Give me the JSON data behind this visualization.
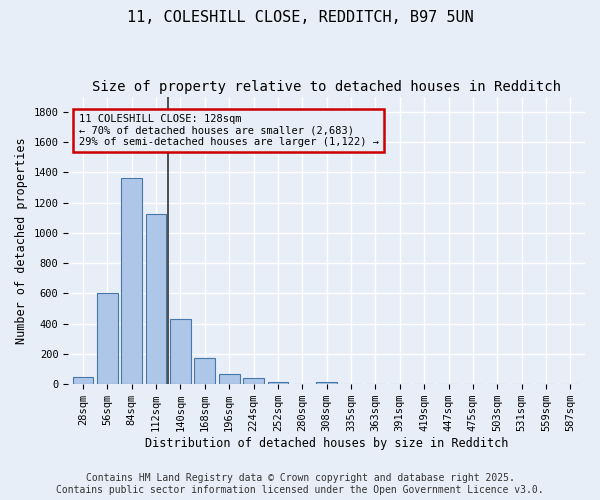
{
  "title_line1": "11, COLESHILL CLOSE, REDDITCH, B97 5UN",
  "title_line2": "Size of property relative to detached houses in Redditch",
  "xlabel": "Distribution of detached houses by size in Redditch",
  "ylabel": "Number of detached properties",
  "categories": [
    "28sqm",
    "56sqm",
    "84sqm",
    "112sqm",
    "140sqm",
    "168sqm",
    "196sqm",
    "224sqm",
    "252sqm",
    "280sqm",
    "308sqm",
    "335sqm",
    "363sqm",
    "391sqm",
    "419sqm",
    "447sqm",
    "475sqm",
    "503sqm",
    "531sqm",
    "559sqm",
    "587sqm"
  ],
  "values": [
    50,
    605,
    1365,
    1125,
    430,
    170,
    65,
    40,
    15,
    0,
    15,
    0,
    0,
    0,
    0,
    0,
    0,
    0,
    0,
    0,
    0
  ],
  "bar_color": "#aec6e8",
  "bar_edge_color": "#4477aa",
  "bg_color": "#e8eef8",
  "grid_color": "#ffffff",
  "annotation_line1": "11 COLESHILL CLOSE: 128sqm",
  "annotation_line2": "← 70% of detached houses are smaller (2,683)",
  "annotation_line3": "29% of semi-detached houses are larger (1,122) →",
  "annotation_box_color": "#cc0000",
  "ylim": [
    0,
    1900
  ],
  "yticks": [
    0,
    200,
    400,
    600,
    800,
    1000,
    1200,
    1400,
    1600,
    1800
  ],
  "footer_line1": "Contains HM Land Registry data © Crown copyright and database right 2025.",
  "footer_line2": "Contains public sector information licensed under the Open Government Licence v3.0.",
  "title_fontsize": 11,
  "subtitle_fontsize": 10,
  "axis_label_fontsize": 8.5,
  "tick_fontsize": 7.5,
  "footer_fontsize": 7,
  "annot_fontsize": 7.5
}
